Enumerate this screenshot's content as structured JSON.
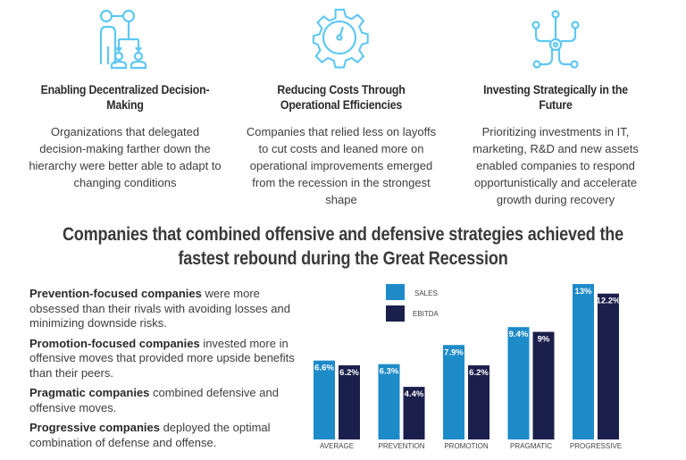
{
  "columns": [
    {
      "icon": "delegation-people-icon",
      "title": "Enabling Decentralized Decision-Making",
      "text": "Organizations that delegated decision-making farther down the hierarchy were better able to adapt to changing conditions"
    },
    {
      "icon": "gear-gauge-icon",
      "title": "Reducing Costs Through Operational Efficiencies",
      "text": "Companies that relied less on layoffs to cut costs and leaned more on operational improvements emerged from the recession in the strongest shape"
    },
    {
      "icon": "circuit-network-icon",
      "title": "Investing Strategically in the Future",
      "text": "Prioritizing investments in IT, marketing, R&D and new assets enabled companies to respond opportunistically and accelerate growth during recovery"
    }
  ],
  "headline": "Companies that combined offensive and defensive strategies achieved the fastest rebound during the Great Recession",
  "definitions": [
    {
      "term": "Prevention-focused companies",
      "text": " were more obsessed than their rivals with avoiding losses and minimizing downside risks."
    },
    {
      "term": "Promotion-focused companies",
      "text": " invested more in offensive moves that provided more upside benefits than their peers."
    },
    {
      "term": "Pragmatic companies",
      "text": " combined defensive and offensive moves."
    },
    {
      "term": "Progressive companies",
      "text": " deployed the optimal combination of defense and offense."
    }
  ],
  "chart_data": {
    "type": "bar",
    "categories": [
      "AVERAGE",
      "PREVENTION",
      "PROMOTION",
      "PRAGMATIC",
      "PROGRESSIVE"
    ],
    "series": [
      {
        "name": "SALES",
        "color": "#1e8bc9",
        "values": [
          6.6,
          6.3,
          7.9,
          9.4,
          13
        ],
        "labels": [
          "6.6%",
          "6.3%",
          "7.9%",
          "9.4%",
          "13%"
        ]
      },
      {
        "name": "EBITDA",
        "color": "#1b1f4b",
        "values": [
          6.2,
          4.4,
          6.2,
          9,
          12.2
        ],
        "labels": [
          "6.2%",
          "4.4%",
          "6.2%",
          "9%",
          "12.2%"
        ]
      }
    ],
    "legend": "top-left",
    "grid": false,
    "ylim": [
      0,
      13
    ]
  },
  "colors": {
    "icon": "#5ec8f2",
    "sales": "#1e8bc9",
    "ebitda": "#1b1f4b"
  }
}
